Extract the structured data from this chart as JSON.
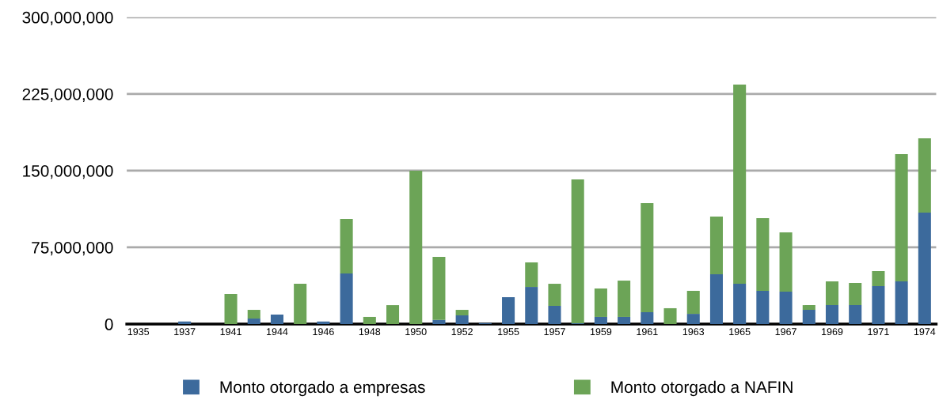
{
  "chart_data": {
    "type": "bar",
    "stacked": true,
    "categories": [
      "1935",
      null,
      "1937",
      null,
      "1941",
      null,
      "1944",
      null,
      "1946",
      null,
      "1948",
      null,
      "1950",
      null,
      "1952",
      null,
      "1955",
      null,
      "1957",
      null,
      "1959",
      null,
      "1961",
      null,
      "1963",
      null,
      "1965",
      null,
      "1967",
      null,
      "1969",
      null,
      "1971",
      null,
      "1974"
    ],
    "series": [
      {
        "name": "Monto otorgado a empresas",
        "color": "#3c6a9c",
        "values": [
          0,
          0,
          2500000,
          0,
          0,
          5400000,
          9300000,
          0,
          2500000,
          49500000,
          0,
          0,
          0,
          4100000,
          8500000,
          1000000,
          26300000,
          36300000,
          17800000,
          800000,
          7000000,
          7000000,
          11600000,
          0,
          10000000,
          48700000,
          39400000,
          32500000,
          31700000,
          13900000,
          18500000,
          18500000,
          37100000,
          41700000,
          109000000
        ]
      },
      {
        "name": "Monto otorgado a NAFIN",
        "color": "#6ca457",
        "values": [
          0,
          0,
          0,
          0,
          29400000,
          8500000,
          0,
          39400000,
          0,
          53300000,
          7000000,
          18500000,
          150000000,
          61600000,
          5400000,
          0,
          0,
          24000000,
          21600000,
          140700000,
          27800000,
          35500000,
          106700000,
          15500000,
          22500000,
          56400000,
          194800000,
          71100000,
          58000000,
          4600000,
          23200000,
          21700000,
          14700000,
          124500000,
          72700000
        ]
      }
    ],
    "ylim": [
      0,
      300000000
    ],
    "yticks": [
      0,
      {
        "value": 75000000,
        "label": "75,000,000"
      },
      {
        "value": 150000000,
        "label": "150,000,000"
      },
      {
        "value": 225000000,
        "label": "225,000,000"
      },
      {
        "value": 300000000,
        "label": "300,000,000"
      }
    ],
    "grid": "y",
    "legend": "bottom"
  }
}
